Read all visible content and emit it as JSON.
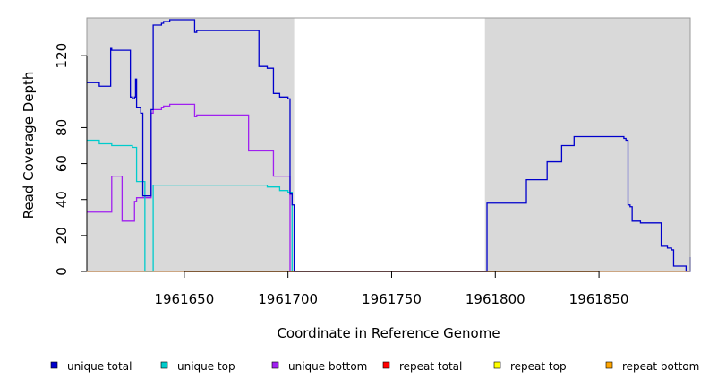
{
  "chart_data": {
    "type": "line",
    "title": "",
    "xlabel": "Coordinate in Reference Genome",
    "ylabel": "Read Coverage Depth",
    "xlim": [
      1961603,
      1961894
    ],
    "ylim": [
      0,
      141
    ],
    "x_ticks": [
      1961650,
      1961700,
      1961750,
      1961800,
      1961850
    ],
    "y_ticks": [
      0,
      20,
      40,
      60,
      80,
      120
    ],
    "shaded_regions": [
      [
        1961603,
        1961703
      ],
      [
        1961795,
        1961894
      ]
    ],
    "background_color": "#d9d9d9",
    "step": true,
    "series": [
      {
        "name": "unique total",
        "color": "#0000cc",
        "x": [
          1961603,
          1961608,
          1961609,
          1961614,
          1961614.5,
          1961615,
          1961615.5,
          1961624,
          1961625,
          1961626,
          1961626.5,
          1961627,
          1961627.5,
          1961629,
          1961630,
          1961631,
          1961634,
          1961635,
          1961637,
          1961639,
          1961640,
          1961642,
          1961643,
          1961645,
          1961649,
          1961655,
          1961656,
          1961680,
          1961686,
          1961690,
          1961692,
          1961693,
          1961696,
          1961700,
          1961701,
          1961702,
          1961703,
          1961795,
          1961796,
          1961800,
          1961805,
          1961810,
          1961815,
          1961820,
          1961825,
          1961832,
          1961838,
          1961862,
          1961863,
          1961864,
          1961865,
          1961866,
          1961870,
          1961875,
          1961880,
          1961883,
          1961885,
          1961886,
          1961890,
          1961892,
          1961894
        ],
        "y": [
          105,
          105,
          103,
          103,
          124,
          123,
          123,
          97,
          96,
          97,
          107,
          91,
          91,
          88,
          42,
          42,
          90,
          137,
          137,
          138,
          139,
          139,
          140,
          140,
          140,
          133,
          134,
          134,
          114,
          113,
          113,
          99,
          97,
          96,
          43,
          37,
          0,
          0,
          38,
          38,
          38,
          38,
          51,
          51,
          61,
          70,
          75,
          74,
          73,
          37,
          36,
          28,
          27,
          27,
          14,
          13,
          12,
          3,
          3,
          0,
          8
        ]
      },
      {
        "name": "unique top",
        "color": "#00cccc",
        "x": [
          1961603,
          1961608,
          1961609,
          1961614,
          1961615,
          1961620,
          1961624,
          1961625,
          1961626,
          1961627,
          1961630,
          1961631,
          1961634,
          1961635,
          1961640,
          1961650,
          1961660,
          1961680,
          1961690,
          1961693,
          1961696,
          1961700,
          1961702
        ],
        "y": [
          73,
          73,
          71,
          71,
          70,
          70,
          70,
          69,
          69,
          50,
          50,
          0,
          0,
          48,
          48,
          48,
          48,
          48,
          47,
          47,
          45,
          44,
          0
        ]
      },
      {
        "name": "unique bottom",
        "color": "#a020f0",
        "x": [
          1961603,
          1961614,
          1961615,
          1961620,
          1961625,
          1961626,
          1961627,
          1961628,
          1961629,
          1961630,
          1961634,
          1961635,
          1961637,
          1961639,
          1961640,
          1961642,
          1961643,
          1961649,
          1961655,
          1961656,
          1961680,
          1961681,
          1961690,
          1961692,
          1961693,
          1961700,
          1961701
        ],
        "y": [
          33,
          33,
          53,
          28,
          28,
          39,
          41,
          41,
          41,
          41,
          88,
          90,
          90,
          91,
          92,
          92,
          93,
          93,
          86,
          87,
          87,
          67,
          67,
          67,
          53,
          53,
          0
        ]
      },
      {
        "name": "repeat total",
        "color": "#ff0000",
        "x": [
          1961603,
          1961894
        ],
        "y": [
          0,
          0
        ]
      },
      {
        "name": "repeat top",
        "color": "#ffff00",
        "x": [
          1961603,
          1961894
        ],
        "y": [
          0,
          0
        ]
      },
      {
        "name": "repeat bottom",
        "color": "#ffa500",
        "x": [
          1961603,
          1961894
        ],
        "y": [
          0,
          0
        ]
      }
    ]
  }
}
